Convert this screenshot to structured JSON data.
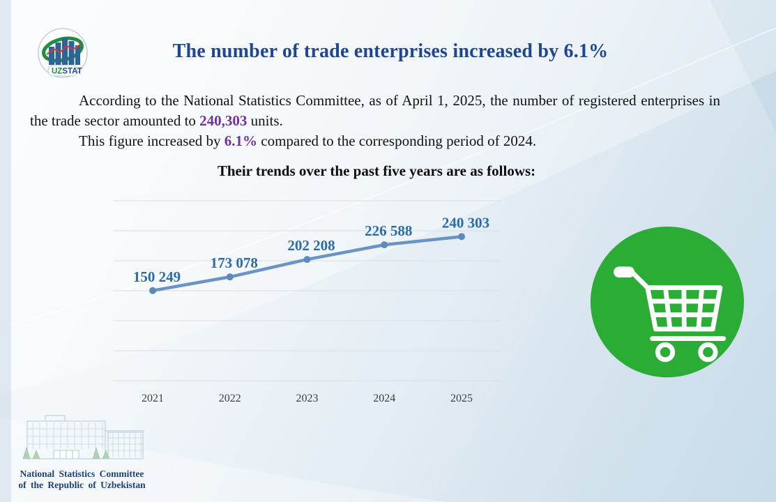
{
  "header": {
    "title": "The number of trade enterprises increased by 6.1%",
    "logo": {
      "uz": "UZ",
      "stat": "STAT"
    }
  },
  "body_text": {
    "p1": {
      "before": "According to the National Statistics Committee, as of April 1, 2025, the number of registered enterprises in the trade sector amounted to ",
      "highlight": "240,303",
      "after": " units."
    },
    "p2": {
      "before": "This figure increased by ",
      "highlight": "6.1%",
      "after": " compared to the corresponding period of 2024."
    }
  },
  "chart_heading": "Their trends over the past five years are as follows:",
  "chart_data": {
    "type": "line",
    "title": "Number of registered trade enterprises by year",
    "categories": [
      "2021",
      "2022",
      "2023",
      "2024",
      "2025"
    ],
    "values": [
      150249,
      173078,
      202208,
      226588,
      240303
    ],
    "data_labels": [
      "150 249",
      "173 078",
      "202 208",
      "226 588",
      "240 303"
    ],
    "xlabel": "",
    "ylabel": "",
    "ylim": [
      0,
      300000
    ],
    "gridline_step": 50000,
    "grid": true,
    "legend": false,
    "line_color": "#6b94c6",
    "marker_color": "#5d89bd",
    "label_color": "#2a6ca8",
    "axis_label_color": "#3d3d3d",
    "grid_color": "#d8dee4"
  },
  "illustration": {
    "name": "shopping-cart-badge",
    "color": "#2bac35"
  },
  "footer": {
    "org_line1": "National Statistics Committee",
    "org_line2": "of the Republic of Uzbekistan"
  },
  "colors": {
    "title": "#1f4693",
    "highlight": "#7030a0",
    "footer_text": "#1f4077",
    "background_light": "#f5f9fb",
    "background_blue": "#c8dcea"
  }
}
